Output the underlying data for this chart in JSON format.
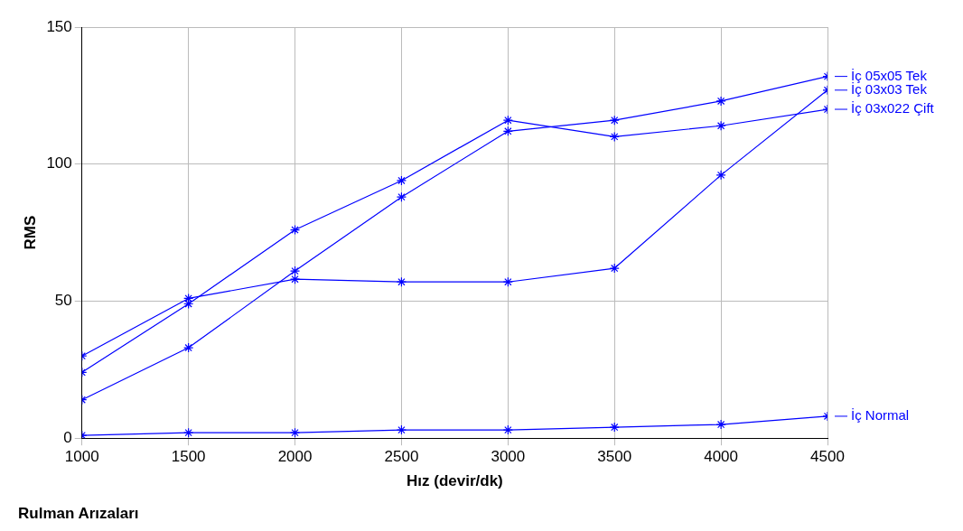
{
  "chart_data": {
    "type": "line",
    "xlabel": "Hız (devir/dk)",
    "ylabel": "RMS",
    "annotations": [
      "Rulman Arızaları"
    ],
    "x": [
      1000,
      1500,
      2000,
      2500,
      3000,
      3500,
      4000,
      4500
    ],
    "xlim": [
      1000,
      4500
    ],
    "xticks": [
      1000,
      1500,
      2000,
      2500,
      3000,
      3500,
      4000,
      4500
    ],
    "ylim": [
      0,
      150
    ],
    "yticks": [
      0,
      50,
      100,
      150
    ],
    "grid": true,
    "legend": "right",
    "marker": "cross",
    "series": [
      {
        "name": "İç 05x05 Tek",
        "color": "#0000ff",
        "values": [
          14,
          33,
          61,
          88,
          112,
          116,
          123,
          132
        ]
      },
      {
        "name": "İç 03x022 Çift",
        "color": "#0000ff",
        "values": [
          24,
          49,
          76,
          94,
          116,
          110,
          114,
          120
        ]
      },
      {
        "name": "İç 03x03 Tek",
        "color": "#0000ff",
        "values": [
          30,
          51,
          58,
          57,
          57,
          62,
          96,
          127
        ]
      },
      {
        "name": "İç Normal",
        "color": "#0000ff",
        "values": [
          1,
          2,
          2,
          3,
          3,
          4,
          5,
          8
        ]
      }
    ]
  }
}
